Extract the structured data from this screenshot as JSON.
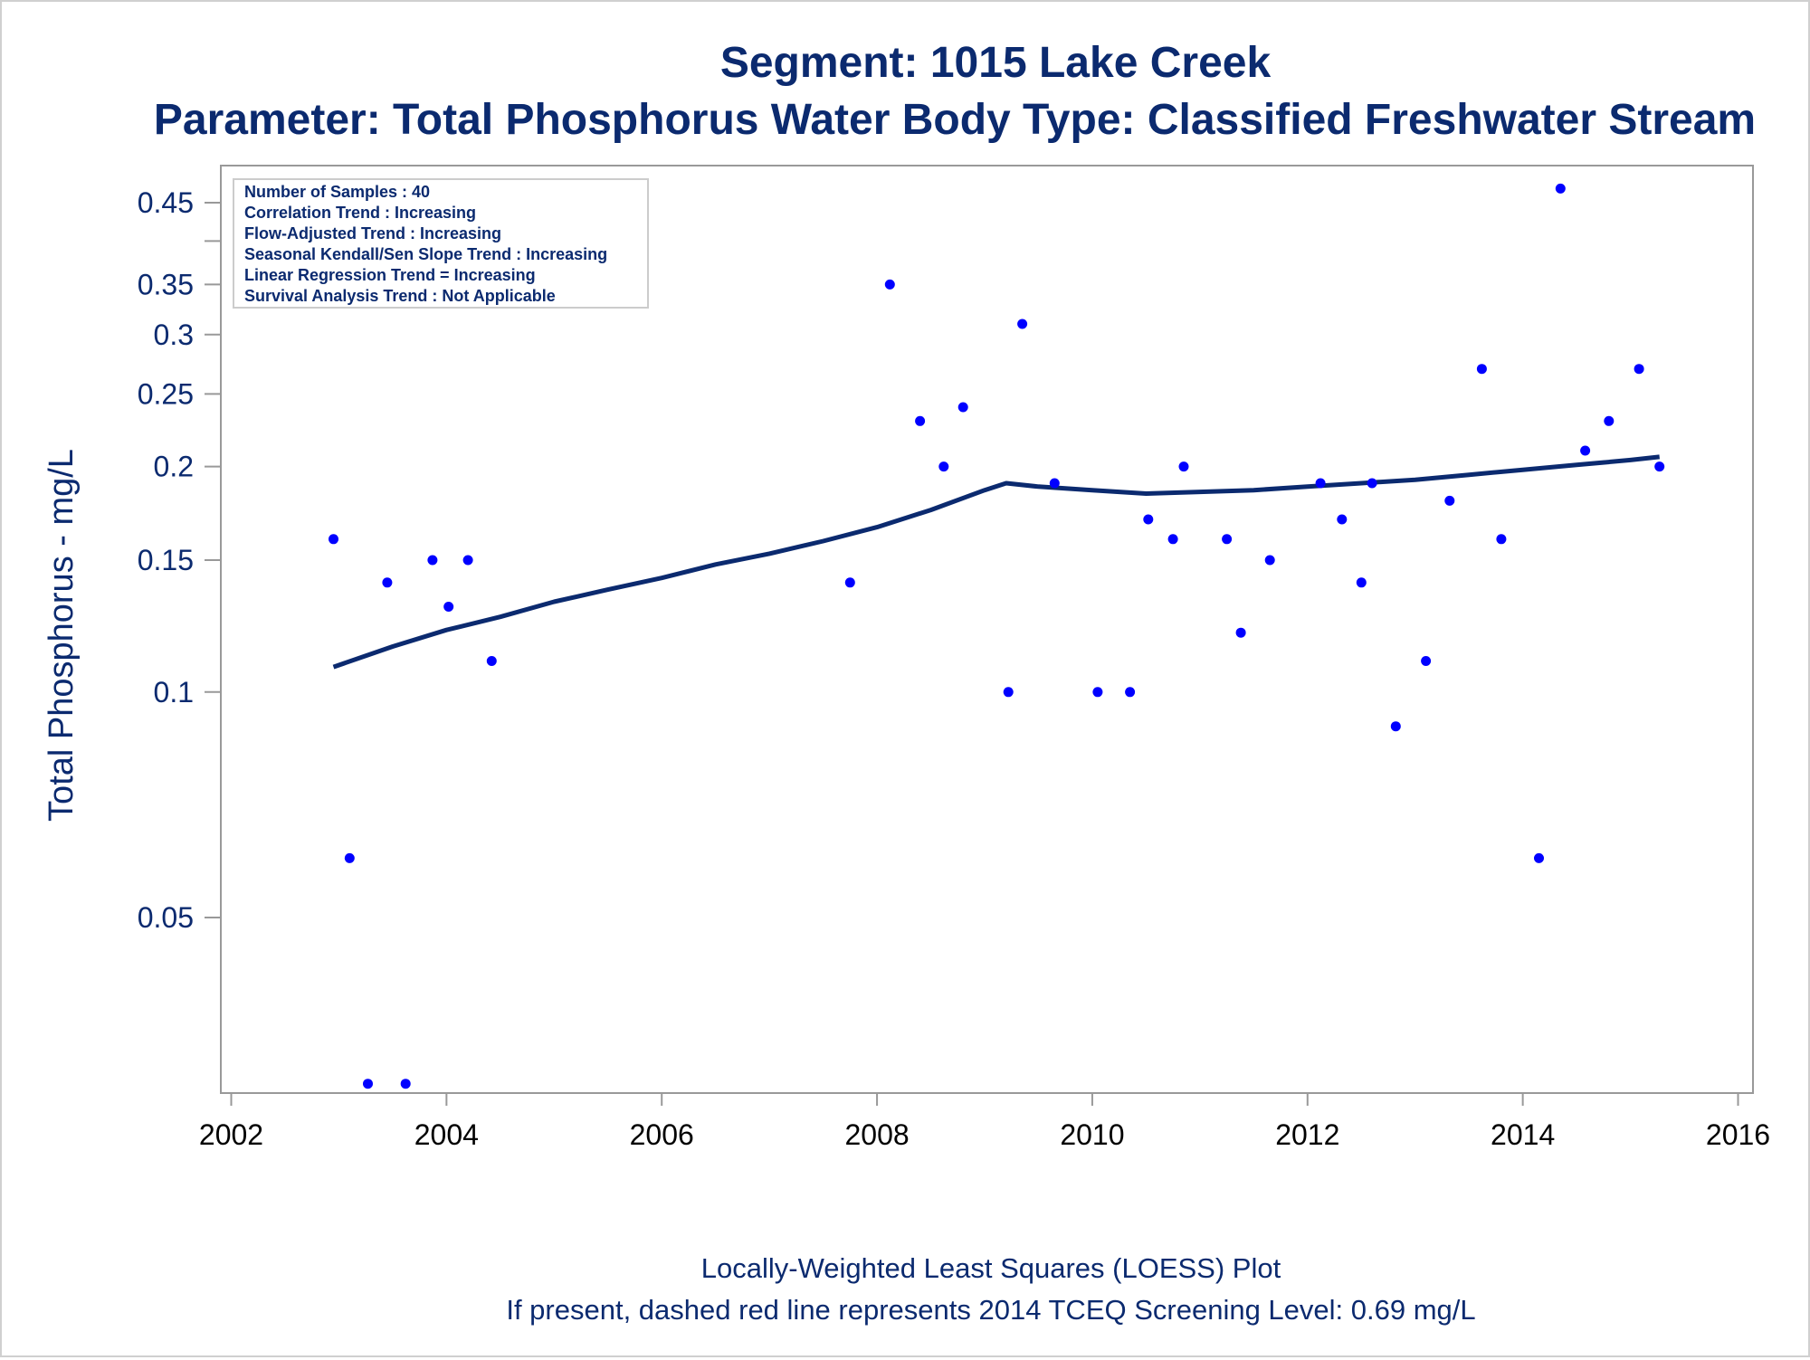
{
  "chart_data": {
    "type": "scatter",
    "title": "Segment: 1015  Lake Creek",
    "subtitle": "Parameter: Total Phosphorus   Water Body Type: Classified Freshwater Stream",
    "xlabel": "",
    "ylabel": "Total Phosphorus - mg/L",
    "yscale": "log",
    "xlim": [
      2002,
      2016
    ],
    "ylim": [
      0.03,
      0.48
    ],
    "xticks": [
      2002,
      2004,
      2006,
      2008,
      2010,
      2012,
      2014,
      2016
    ],
    "yticks": [
      0.05,
      0.1,
      0.15,
      0.2,
      0.25,
      0.3,
      0.35,
      0.45
    ],
    "ytick_labels": [
      "0.05",
      "0.1",
      "0.15",
      "0.2",
      "0.25",
      "0.3",
      "0.35",
      "0.45"
    ],
    "stats_box": [
      "Number of Samples : 40",
      "Correlation Trend : Increasing",
      "Flow-Adjusted Trend : Increasing",
      "Seasonal Kendall/Sen Slope Trend : Increasing",
      "Linear Regression Trend = Increasing",
      "Survival Analysis Trend : Not Applicable"
    ],
    "footnotes": [
      "Locally-Weighted Least Squares (LOESS) Plot",
      "If present, dashed red line represents 2014 TCEQ Screening Level: 0.69 mg/L"
    ],
    "series": [
      {
        "type": "scatter",
        "color": "#0000ff",
        "points": [
          [
            2002.95,
            0.16
          ],
          [
            2003.1,
            0.06
          ],
          [
            2003.27,
            0.03
          ],
          [
            2003.45,
            0.14
          ],
          [
            2003.62,
            0.03
          ],
          [
            2003.87,
            0.15
          ],
          [
            2004.02,
            0.13
          ],
          [
            2004.2,
            0.15
          ],
          [
            2004.42,
            0.11
          ],
          [
            2007.75,
            0.14
          ],
          [
            2008.12,
            0.35
          ],
          [
            2008.4,
            0.23
          ],
          [
            2008.62,
            0.2
          ],
          [
            2008.8,
            0.24
          ],
          [
            2009.22,
            0.1
          ],
          [
            2009.35,
            0.31
          ],
          [
            2009.65,
            0.19
          ],
          [
            2010.05,
            0.1
          ],
          [
            2010.35,
            0.1
          ],
          [
            2010.52,
            0.17
          ],
          [
            2010.75,
            0.16
          ],
          [
            2010.85,
            0.2
          ],
          [
            2011.25,
            0.16
          ],
          [
            2011.38,
            0.12
          ],
          [
            2011.65,
            0.15
          ],
          [
            2012.12,
            0.19
          ],
          [
            2012.32,
            0.17
          ],
          [
            2012.5,
            0.14
          ],
          [
            2012.6,
            0.19
          ],
          [
            2012.82,
            0.09
          ],
          [
            2013.1,
            0.11
          ],
          [
            2013.32,
            0.18
          ],
          [
            2013.62,
            0.27
          ],
          [
            2013.8,
            0.16
          ],
          [
            2014.15,
            0.06
          ],
          [
            2014.35,
            0.47
          ],
          [
            2014.58,
            0.21
          ],
          [
            2014.8,
            0.23
          ],
          [
            2015.08,
            0.27
          ],
          [
            2015.27,
            0.2
          ]
        ]
      },
      {
        "type": "line",
        "color": "#0b2a6f",
        "points": [
          [
            2002.95,
            0.108
          ],
          [
            2003.5,
            0.115
          ],
          [
            2004.0,
            0.121
          ],
          [
            2004.5,
            0.126
          ],
          [
            2005.0,
            0.132
          ],
          [
            2005.5,
            0.137
          ],
          [
            2006.0,
            0.142
          ],
          [
            2006.5,
            0.148
          ],
          [
            2007.0,
            0.153
          ],
          [
            2007.5,
            0.159
          ],
          [
            2008.0,
            0.166
          ],
          [
            2008.5,
            0.175
          ],
          [
            2009.0,
            0.186
          ],
          [
            2009.2,
            0.19
          ],
          [
            2009.5,
            0.188
          ],
          [
            2010.0,
            0.186
          ],
          [
            2010.5,
            0.184
          ],
          [
            2011.0,
            0.185
          ],
          [
            2011.5,
            0.186
          ],
          [
            2012.0,
            0.188
          ],
          [
            2012.5,
            0.19
          ],
          [
            2013.0,
            0.192
          ],
          [
            2013.5,
            0.195
          ],
          [
            2014.0,
            0.198
          ],
          [
            2014.5,
            0.201
          ],
          [
            2015.0,
            0.204
          ],
          [
            2015.27,
            0.206
          ]
        ]
      }
    ]
  }
}
